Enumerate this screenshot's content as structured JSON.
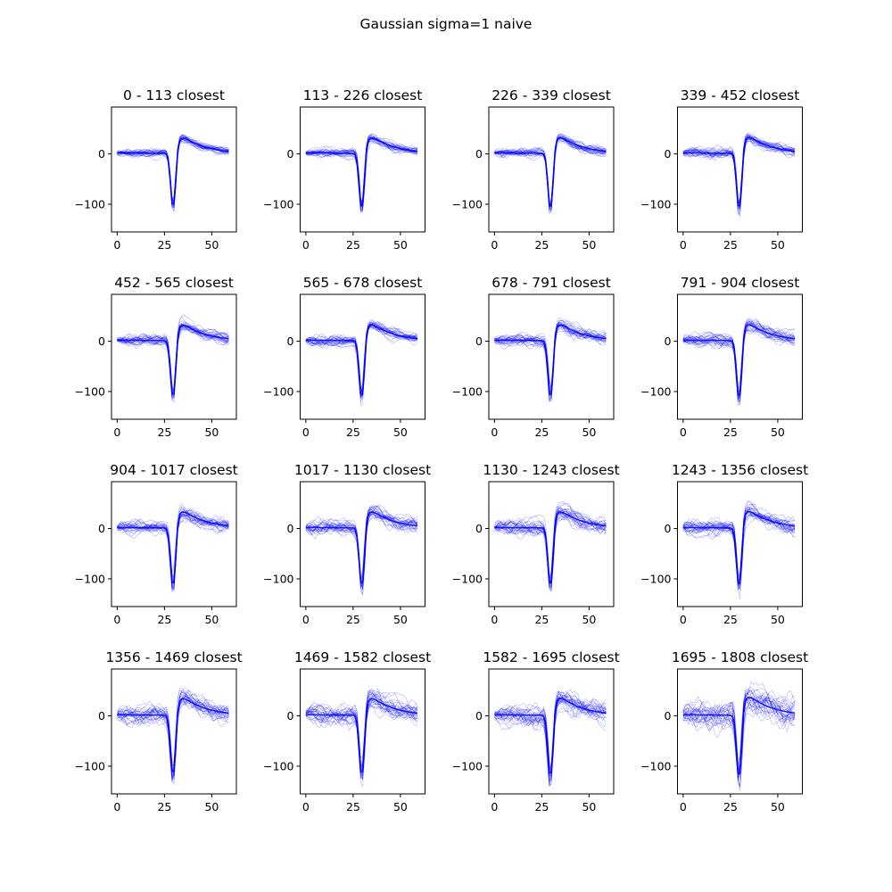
{
  "figure": {
    "suptitle": "Gaussian sigma=1 naive",
    "trace_color": "#0000ff"
  },
  "chart_data": [
    {
      "type": "line",
      "title": "0 - 113 closest",
      "xlim": [
        -3,
        63
      ],
      "ylim": [
        -155,
        93
      ],
      "xticks": [
        0,
        25,
        50
      ],
      "yticks": [
        0,
        -100
      ],
      "samples": 60,
      "noise": 4,
      "trough": -108,
      "peak": 47
    },
    {
      "type": "line",
      "title": "113 - 226 closest",
      "xlim": [
        -3,
        63
      ],
      "ylim": [
        -155,
        93
      ],
      "xticks": [
        0,
        25,
        50
      ],
      "yticks": [
        0,
        -100
      ],
      "samples": 60,
      "noise": 4.5,
      "trough": -112,
      "peak": 48
    },
    {
      "type": "line",
      "title": "226 - 339 closest",
      "xlim": [
        -3,
        63
      ],
      "ylim": [
        -155,
        93
      ],
      "xticks": [
        0,
        25,
        50
      ],
      "yticks": [
        0,
        -100
      ],
      "samples": 60,
      "noise": 5,
      "trough": -113,
      "peak": 48
    },
    {
      "type": "line",
      "title": "339 - 452 closest",
      "xlim": [
        -3,
        63
      ],
      "ylim": [
        -155,
        93
      ],
      "xticks": [
        0,
        25,
        50
      ],
      "yticks": [
        0,
        -100
      ],
      "samples": 60,
      "noise": 5.5,
      "trough": -113,
      "peak": 49
    },
    {
      "type": "line",
      "title": "452 - 565 closest",
      "xlim": [
        -3,
        63
      ],
      "ylim": [
        -155,
        93
      ],
      "xticks": [
        0,
        25,
        50
      ],
      "yticks": [
        0,
        -100
      ],
      "samples": 60,
      "noise": 6,
      "trough": -114,
      "peak": 48
    },
    {
      "type": "line",
      "title": "565 - 678 closest",
      "xlim": [
        -3,
        63
      ],
      "ylim": [
        -155,
        93
      ],
      "xticks": [
        0,
        25,
        50
      ],
      "yticks": [
        0,
        -100
      ],
      "samples": 60,
      "noise": 6,
      "trough": -115,
      "peak": 49
    },
    {
      "type": "line",
      "title": "678 - 791 closest",
      "xlim": [
        -3,
        63
      ],
      "ylim": [
        -155,
        93
      ],
      "xticks": [
        0,
        25,
        50
      ],
      "yticks": [
        0,
        -100
      ],
      "samples": 60,
      "noise": 6.5,
      "trough": -115,
      "peak": 49
    },
    {
      "type": "line",
      "title": "791 - 904 closest",
      "xlim": [
        -3,
        63
      ],
      "ylim": [
        -155,
        93
      ],
      "xticks": [
        0,
        25,
        50
      ],
      "yticks": [
        0,
        -100
      ],
      "samples": 60,
      "noise": 7,
      "trough": -116,
      "peak": 49
    },
    {
      "type": "line",
      "title": "904 - 1017 closest",
      "xlim": [
        -3,
        63
      ],
      "ylim": [
        -155,
        93
      ],
      "xticks": [
        0,
        25,
        50
      ],
      "yticks": [
        0,
        -100
      ],
      "samples": 60,
      "noise": 7.5,
      "trough": -117,
      "peak": 50
    },
    {
      "type": "line",
      "title": "1017 - 1130 closest",
      "xlim": [
        -3,
        63
      ],
      "ylim": [
        -155,
        93
      ],
      "xticks": [
        0,
        25,
        50
      ],
      "yticks": [
        0,
        -100
      ],
      "samples": 60,
      "noise": 8,
      "trough": -117,
      "peak": 50
    },
    {
      "type": "line",
      "title": "1130 - 1243 closest",
      "xlim": [
        -3,
        63
      ],
      "ylim": [
        -155,
        93
      ],
      "xticks": [
        0,
        25,
        50
      ],
      "yticks": [
        0,
        -100
      ],
      "samples": 60,
      "noise": 8.5,
      "trough": -118,
      "peak": 50
    },
    {
      "type": "line",
      "title": "1243 - 1356 closest",
      "xlim": [
        -3,
        63
      ],
      "ylim": [
        -155,
        93
      ],
      "xticks": [
        0,
        25,
        50
      ],
      "yticks": [
        0,
        -100
      ],
      "samples": 60,
      "noise": 9,
      "trough": -119,
      "peak": 51
    },
    {
      "type": "line",
      "title": "1356 - 1469 closest",
      "xlim": [
        -3,
        63
      ],
      "ylim": [
        -155,
        93
      ],
      "xticks": [
        0,
        25,
        50
      ],
      "yticks": [
        0,
        -100
      ],
      "samples": 60,
      "noise": 10,
      "trough": -120,
      "peak": 52
    },
    {
      "type": "line",
      "title": "1469 - 1582 closest",
      "xlim": [
        -3,
        63
      ],
      "ylim": [
        -155,
        93
      ],
      "xticks": [
        0,
        25,
        50
      ],
      "yticks": [
        0,
        -100
      ],
      "samples": 60,
      "noise": 11,
      "trough": -122,
      "peak": 52
    },
    {
      "type": "line",
      "title": "1582 - 1695 closest",
      "xlim": [
        -3,
        63
      ],
      "ylim": [
        -155,
        93
      ],
      "xticks": [
        0,
        25,
        50
      ],
      "yticks": [
        0,
        -100
      ],
      "samples": 60,
      "noise": 12,
      "trough": -123,
      "peak": 53
    },
    {
      "type": "line",
      "title": "1695 - 1808 closest",
      "xlim": [
        -3,
        63
      ],
      "ylim": [
        -155,
        93
      ],
      "xticks": [
        0,
        25,
        50
      ],
      "yticks": [
        0,
        -100
      ],
      "samples": 60,
      "noise": 15,
      "trough": -125,
      "peak": 56
    }
  ]
}
